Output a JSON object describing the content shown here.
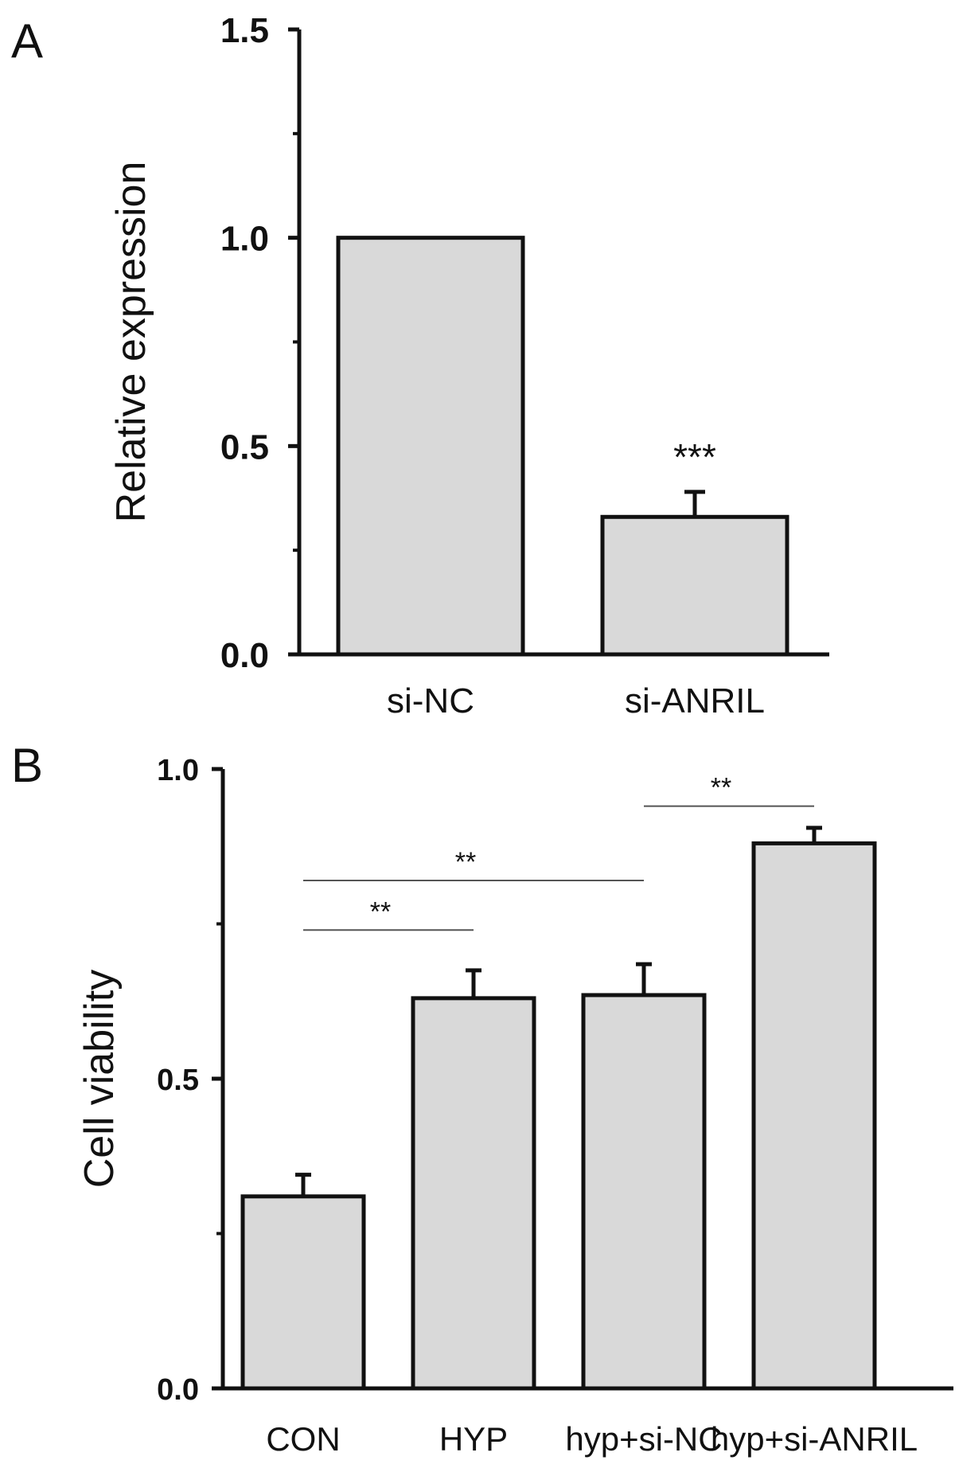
{
  "chart_data": [
    {
      "panel": "A",
      "type": "bar",
      "title": "",
      "xlabel": "",
      "ylabel": "Relative expression",
      "ylim": [
        0,
        1.5
      ],
      "yticks": [
        "0.0",
        "0.5",
        "1.0",
        "1.5"
      ],
      "categories": [
        "si-NC",
        "si-ANRIL"
      ],
      "values": [
        1.0,
        0.33
      ],
      "errors": [
        0,
        0.06
      ],
      "bar_color": "#d9d9d9",
      "grid": false,
      "significance": [
        {
          "label": "***",
          "bar": 1
        }
      ]
    },
    {
      "panel": "B",
      "type": "bar",
      "title": "",
      "xlabel": "",
      "ylabel": "Cell viability",
      "ylim": [
        0,
        1.0
      ],
      "yticks": [
        "0.0",
        "0.5",
        "1.0"
      ],
      "categories": [
        "CON",
        "HYP",
        "hyp+si-NC",
        "hyp+si-ANRIL"
      ],
      "values": [
        0.31,
        0.63,
        0.635,
        0.88
      ],
      "errors": [
        0.035,
        0.045,
        0.05,
        0.025
      ],
      "bar_color": "#d9d9d9",
      "grid": false,
      "significance": [
        {
          "label": "**",
          "from": 0,
          "to": 1,
          "y": 0.74
        },
        {
          "label": "**",
          "from": 0,
          "to": 2,
          "y": 0.82
        },
        {
          "label": "**",
          "from": 2,
          "to": 3,
          "y": 0.94
        }
      ]
    }
  ]
}
